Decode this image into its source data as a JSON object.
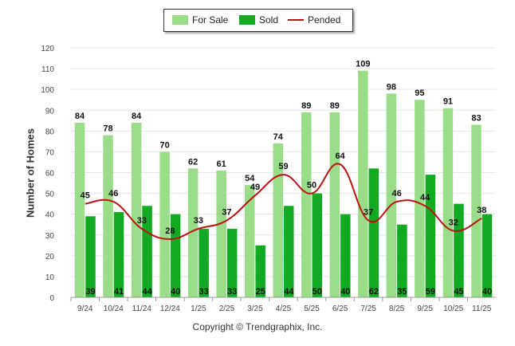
{
  "chart_data": {
    "type": "bar",
    "title": "",
    "xlabel": "",
    "ylabel": "Number of Homes",
    "ylim": [
      0,
      120
    ],
    "yticks": [
      0,
      10,
      20,
      30,
      40,
      50,
      60,
      70,
      80,
      90,
      100,
      110,
      120
    ],
    "grid": true,
    "legend_position": "top-center",
    "categories": [
      "9/24",
      "10/24",
      "11/24",
      "12/24",
      "1/25",
      "2/25",
      "3/25",
      "4/25",
      "5/25",
      "6/25",
      "7/25",
      "8/25",
      "9/25",
      "10/25",
      "11/25"
    ],
    "series": [
      {
        "name": "For Sale",
        "kind": "bar",
        "color": "#99dd88",
        "values": [
          84,
          78,
          84,
          70,
          62,
          61,
          54,
          74,
          89,
          89,
          109,
          98,
          95,
          91,
          83
        ]
      },
      {
        "name": "Sold",
        "kind": "bar",
        "color": "#11aa22",
        "values": [
          39,
          41,
          44,
          40,
          33,
          33,
          25,
          44,
          50,
          40,
          62,
          35,
          59,
          45,
          40
        ]
      },
      {
        "name": "Pended",
        "kind": "line",
        "color": "#bb1111",
        "values": [
          45,
          46,
          33,
          28,
          33,
          37,
          49,
          59,
          50,
          64,
          37,
          46,
          44,
          32,
          38
        ]
      }
    ]
  },
  "footer": {
    "copyright": "Copyright © Trendgraphix, Inc."
  }
}
